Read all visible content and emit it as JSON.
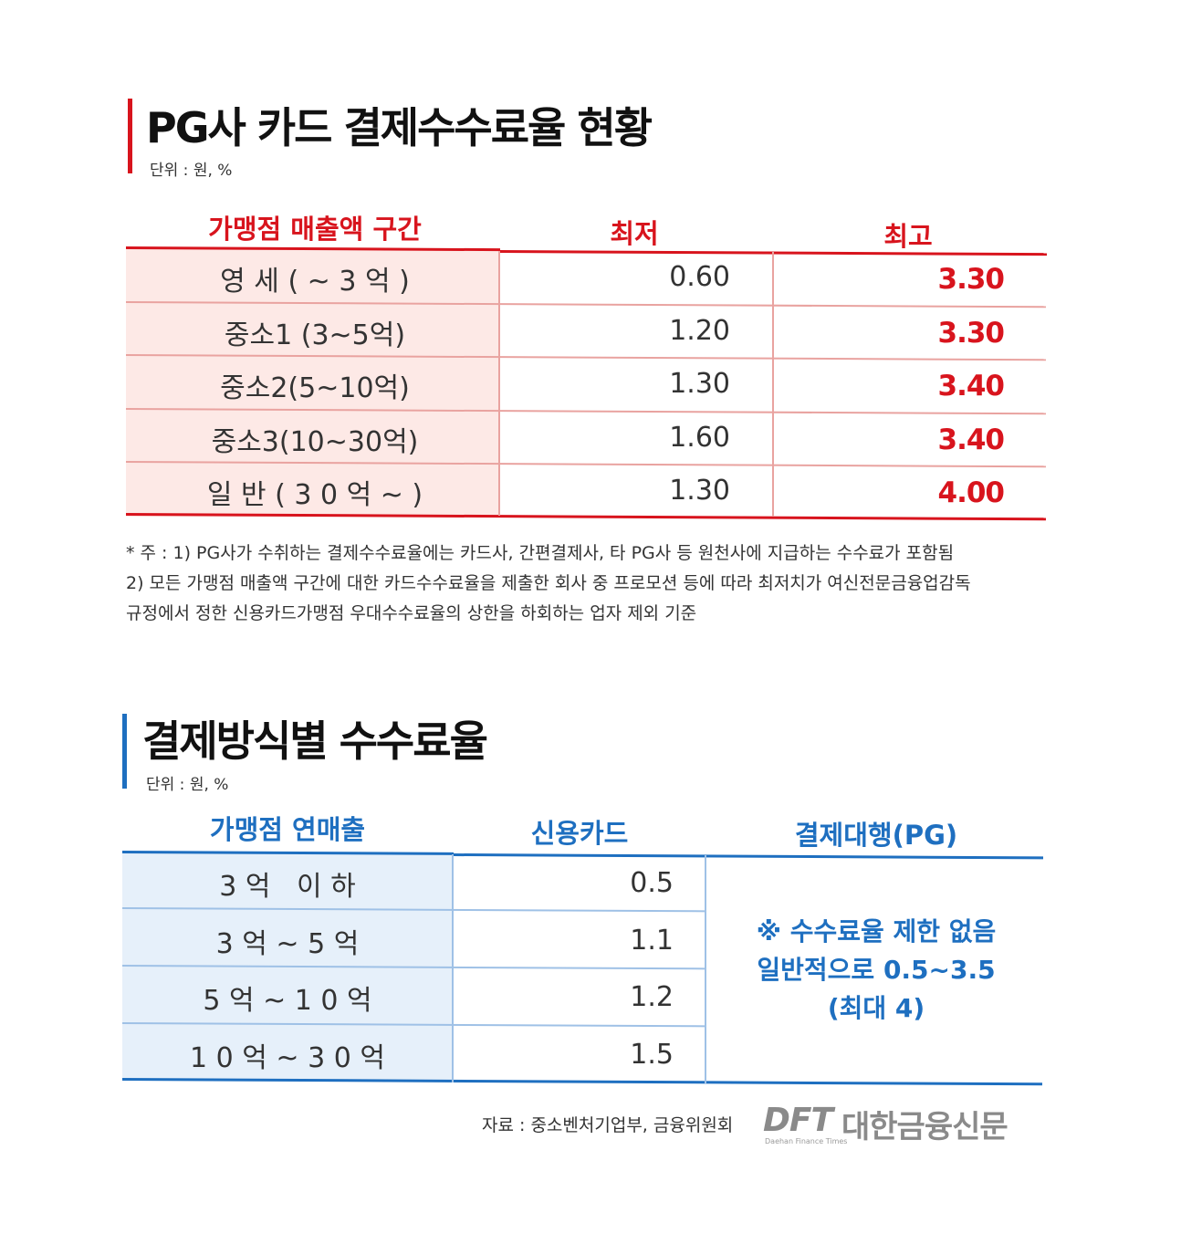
{
  "section1": {
    "title": "PG사 카드 결제수수료율 현황",
    "unit": "단위 : 원, %",
    "headers": [
      "가맹점 매출액 구간",
      "최저",
      "최고"
    ],
    "rows": [
      {
        "segment": "영 세 ( ~ 3 억 )",
        "min": "0.60",
        "max": "3.30"
      },
      {
        "segment": "중소1 (3~5억)",
        "min": "1.20",
        "max": "3.30"
      },
      {
        "segment": "중소2(5~10억)",
        "min": "1.30",
        "max": "3.40"
      },
      {
        "segment": "중소3(10~30억)",
        "min": "1.60",
        "max": "3.40"
      },
      {
        "segment": "일 반 ( 3 0 억 ~ )",
        "min": "1.30",
        "max": "4.00"
      }
    ],
    "notes": [
      "* 주 : 1) PG사가 수취하는 결제수수료율에는 카드사, 간편결제사, 타 PG사 등 원천사에 지급하는 수수료가 포함됨",
      "2) 모든 가맹점 매출액 구간에 대한 카드수수료율을 제출한 회사 중 프로모션 등에 따라 최저치가 여신전문금융업감독",
      "규정에서 정한 신용카드가맹점 우대수수료율의 상한을 하회하는 업자 제외 기준"
    ]
  },
  "section2": {
    "title": "결제방식별 수수료율",
    "unit": "단위 : 원, %",
    "headers": [
      "가맹점 연매출",
      "신용카드",
      "결제대행(PG)"
    ],
    "rows": [
      {
        "segment": "3 억   이 하",
        "credit": "0.5"
      },
      {
        "segment": "3 억 ~ 5 억",
        "credit": "1.1"
      },
      {
        "segment": "5 억 ~ 1 0 억",
        "credit": "1.2"
      },
      {
        "segment": "1 0 억 ~ 3 0 억",
        "credit": "1.5"
      }
    ],
    "pg_note": [
      "※ 수수료율 제한 없음",
      "일반적으로 0.5~3.5",
      "(최대 4)"
    ]
  },
  "footer": {
    "source": "자료 : 중소벤처기업부, 금융위원회",
    "logo_mark": "DFT",
    "logo_text": "대한금융신문",
    "logo_sub": "Daehan Finance Times"
  },
  "colors": {
    "red": "#d8141d",
    "blue": "#1e6fc0",
    "pink_fill": "#fde9e6",
    "blue_fill": "#e6f0fa"
  }
}
